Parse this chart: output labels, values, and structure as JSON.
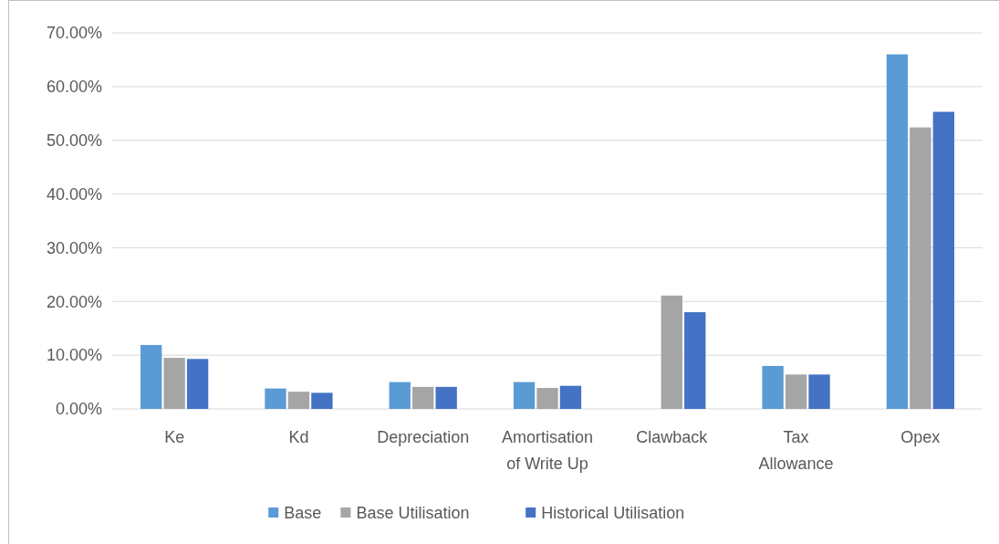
{
  "chart_data": {
    "type": "bar",
    "categories": [
      "Ke",
      "Kd",
      "Depreciation",
      "Amortisation of Write Up",
      "Clawback",
      "Tax Allowance",
      "Opex"
    ],
    "series": [
      {
        "name": "Base",
        "color": "#5b9bd5",
        "values": [
          11.9,
          3.8,
          5.0,
          5.0,
          0,
          8.0,
          66.0
        ]
      },
      {
        "name": "Base Utilisation",
        "color": "#a5a5a5",
        "values": [
          9.5,
          3.2,
          4.1,
          3.9,
          21.1,
          6.4,
          52.4
        ]
      },
      {
        "name": "Historical Utilisation",
        "color": "#4472c4",
        "values": [
          9.3,
          3.0,
          4.1,
          4.3,
          18.0,
          6.4,
          55.3
        ]
      }
    ],
    "ylim": [
      0,
      70
    ],
    "yticks": [
      {
        "value": 0,
        "label": "0.00%"
      },
      {
        "value": 10,
        "label": "10.00%"
      },
      {
        "value": 20,
        "label": "20.00%"
      },
      {
        "value": 30,
        "label": "30.00%"
      },
      {
        "value": 40,
        "label": "40.00%"
      },
      {
        "value": 50,
        "label": "50.00%"
      },
      {
        "value": 60,
        "label": "60.00%"
      },
      {
        "value": 70,
        "label": "70.00%"
      }
    ],
    "grid": "y",
    "legend": "bottom"
  }
}
